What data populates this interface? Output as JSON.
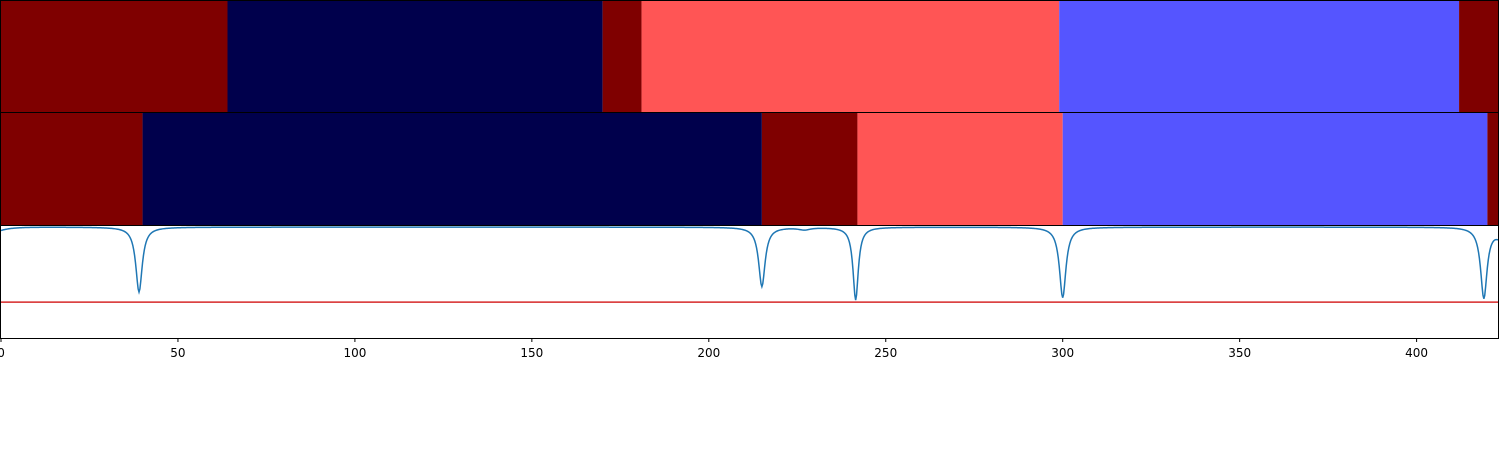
{
  "chart_data": [
    {
      "type": "segmentation-strip",
      "title": "",
      "x_range": [
        0,
        423
      ],
      "segments": [
        {
          "start": 0,
          "end": 64,
          "color": "#7f0000"
        },
        {
          "start": 64,
          "end": 170,
          "color": "#00004c"
        },
        {
          "start": 170,
          "end": 181,
          "color": "#7f0000"
        },
        {
          "start": 181,
          "end": 299,
          "color": "#ff5555"
        },
        {
          "start": 299,
          "end": 412,
          "color": "#5555ff"
        },
        {
          "start": 412,
          "end": 423,
          "color": "#7f0000"
        }
      ]
    },
    {
      "type": "segmentation-strip",
      "title": "",
      "x_range": [
        0,
        423
      ],
      "segments": [
        {
          "start": 0,
          "end": 40,
          "color": "#7f0000"
        },
        {
          "start": 40,
          "end": 215,
          "color": "#00004c"
        },
        {
          "start": 215,
          "end": 242,
          "color": "#7f0000"
        },
        {
          "start": 242,
          "end": 300,
          "color": "#ff5555"
        },
        {
          "start": 300,
          "end": 420,
          "color": "#5555ff"
        },
        {
          "start": 420,
          "end": 423,
          "color": "#7f0000"
        }
      ]
    },
    {
      "type": "line",
      "title": "",
      "xlabel": "",
      "ylabel": "",
      "xlim": [
        0,
        423
      ],
      "ylim": [
        0,
        1
      ],
      "x_ticks": [
        0,
        50,
        100,
        150,
        200,
        250,
        300,
        350,
        400
      ],
      "series": [
        {
          "color": "#1f77b4",
          "baseline": 0.99,
          "start_value": 0.96,
          "end_value": 0.92,
          "dips": [
            {
              "x": 39,
              "depth": 0.58,
              "width": 1.1
            },
            {
              "x": 215,
              "depth": 0.53,
              "width": 1.1
            },
            {
              "x": 227,
              "depth": 0.02,
              "width": 2.0
            },
            {
              "x": 241.5,
              "depth": 0.65,
              "width": 0.9
            },
            {
              "x": 300,
              "depth": 0.63,
              "width": 1.1
            },
            {
              "x": 419,
              "depth": 0.63,
              "width": 1.1
            }
          ]
        }
      ],
      "threshold": {
        "y": 0.32,
        "color": "#d62728"
      }
    }
  ]
}
